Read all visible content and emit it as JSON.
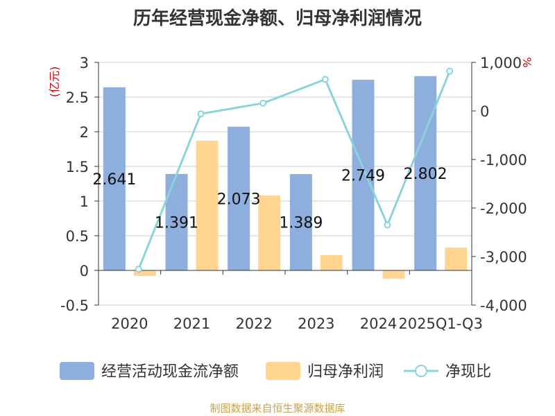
{
  "title": "历年经营现金净额、归母净利润情况",
  "source": "制图数据来自恒生聚源数据库",
  "chart_data": {
    "type": "bar",
    "categories": [
      "2020",
      "2021",
      "2022",
      "2023",
      "2024",
      "2025Q1-Q3"
    ],
    "series": [
      {
        "name": "经营活动现金流净额",
        "type": "bar",
        "axis": "left",
        "color": "#8eaedd",
        "values": [
          2.641,
          1.391,
          2.073,
          1.389,
          2.749,
          2.802
        ],
        "labels": [
          "2.641",
          "1.391",
          "2.073",
          "1.389",
          "2.749",
          "2.802"
        ]
      },
      {
        "name": "归母净利润",
        "type": "bar",
        "axis": "left",
        "color": "#ffd591",
        "values": [
          -0.08,
          1.87,
          1.08,
          0.22,
          -0.12,
          0.33
        ]
      },
      {
        "name": "净现比",
        "type": "line",
        "axis": "right",
        "color": "#8bd3da",
        "values": [
          -3260,
          -60,
          160,
          650,
          -2350,
          820
        ]
      }
    ],
    "y_left": {
      "unit": "(亿元)",
      "min": -0.5,
      "max": 3,
      "ticks": [
        "-0.5",
        "0",
        "0.5",
        "1",
        "1.5",
        "2",
        "2.5",
        "3"
      ]
    },
    "y_right": {
      "unit": "%",
      "min": -4000,
      "max": 1000,
      "ticks": [
        "-4,000",
        "-3,000",
        "-2,000",
        "-1,000",
        "0",
        "1,000"
      ]
    },
    "grid": true,
    "legend_position": "bottom"
  }
}
